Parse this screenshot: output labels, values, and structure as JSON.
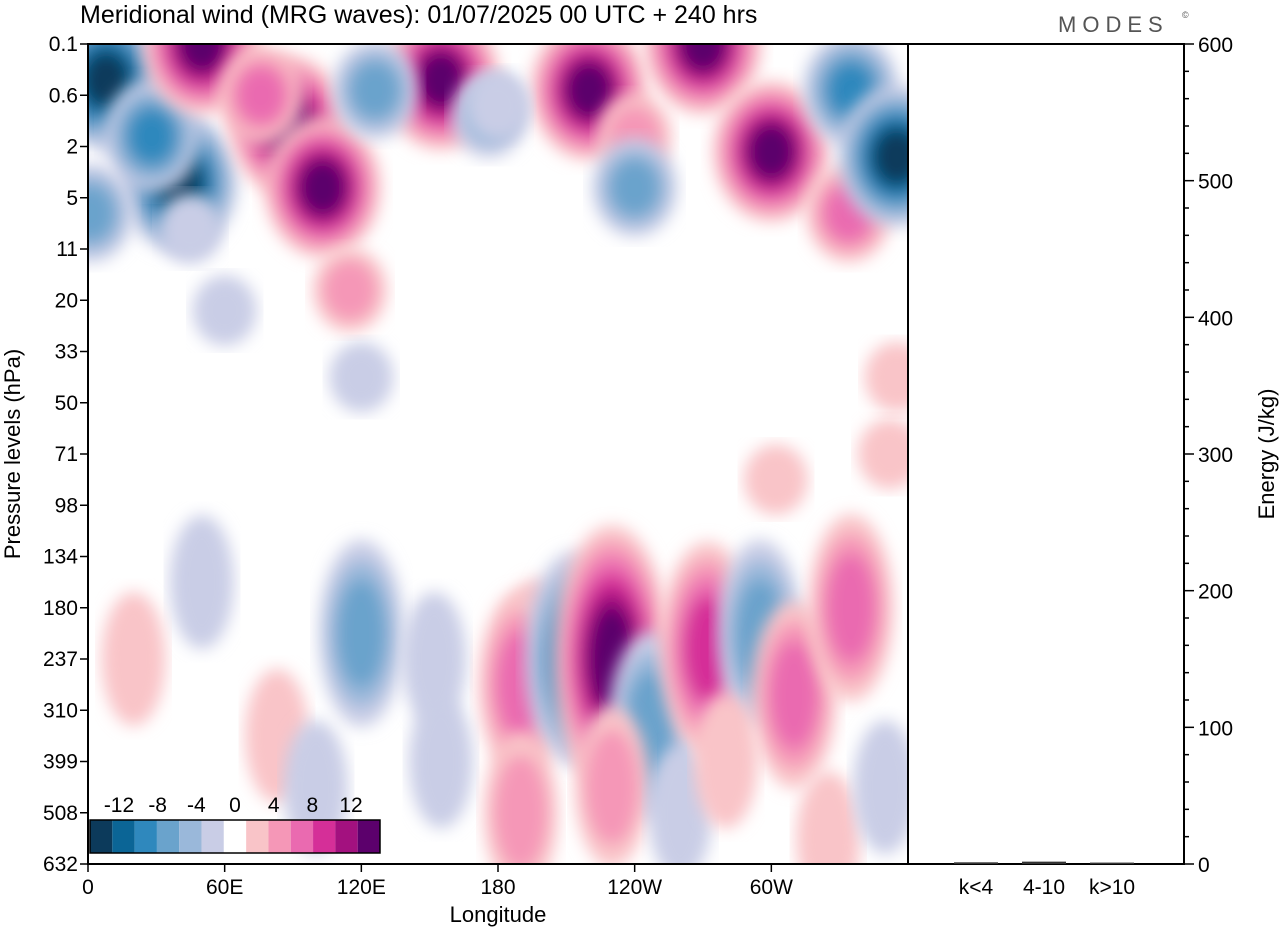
{
  "title": "Meridional wind (MRG waves):  01/07/2025  00 UTC  + 240 hrs",
  "logo": "MODES",
  "logo_mark": "©",
  "chart_data": [
    {
      "type": "heatmap",
      "title": "Meridional wind (MRG waves):  01/07/2025  00 UTC  + 240 hrs",
      "xlabel": "Longitude",
      "ylabel": "Pressure levels (hPa)",
      "x_ticks": [
        "0",
        "60E",
        "120E",
        "180",
        "120W",
        "60W"
      ],
      "x_tick_values": [
        0,
        60,
        120,
        180,
        240,
        300
      ],
      "xlim": [
        0,
        360
      ],
      "y_ticks": [
        "0.1",
        "0.6",
        "2",
        "5",
        "11",
        "20",
        "33",
        "50",
        "71",
        "98",
        "134",
        "180",
        "237",
        "310",
        "399",
        "508",
        "632"
      ],
      "y_scale": "pressure levels (inverted, top = 0.1 hPa)",
      "colorbar": {
        "labels": [
          "-12",
          "-8",
          "-4",
          "0",
          "4",
          "8",
          "12"
        ],
        "levels": [
          -14,
          -12,
          -10,
          -8,
          -6,
          -4,
          -2,
          2,
          4,
          6,
          8,
          10,
          12,
          14
        ],
        "colors": [
          "#0c3a5b",
          "#0b6596",
          "#2f88bd",
          "#6aa3cc",
          "#9ab8da",
          "#c9cde6",
          "#ffffff",
          "#f9c4c8",
          "#f597b7",
          "#ea6ab0",
          "#d52f98",
          "#a3117f",
          "#5c006c"
        ]
      },
      "features": [
        {
          "lon": 8,
          "level_index": 0.7,
          "value": -14
        },
        {
          "lon": 40,
          "level_index": 2.7,
          "value": -14
        },
        {
          "lon": 28,
          "level_index": 1.8,
          "value": -10
        },
        {
          "lon": 1,
          "level_index": 3.3,
          "value": -8
        },
        {
          "lon": 45,
          "level_index": 3.6,
          "value": -4
        },
        {
          "lon": 50,
          "level_index": 0.0,
          "value": 12
        },
        {
          "lon": 88,
          "level_index": 1.6,
          "value": 13
        },
        {
          "lon": 103,
          "level_index": 2.8,
          "value": 12
        },
        {
          "lon": 76,
          "level_index": 1.0,
          "value": 6
        },
        {
          "lon": 115,
          "level_index": 4.8,
          "value": 4
        },
        {
          "lon": 155,
          "level_index": 0.7,
          "value": 13
        },
        {
          "lon": 220,
          "level_index": 0.9,
          "value": 13
        },
        {
          "lon": 270,
          "level_index": 0.0,
          "value": 12
        },
        {
          "lon": 300,
          "level_index": 2.1,
          "value": 14
        },
        {
          "lon": 334,
          "level_index": 3.3,
          "value": 6
        },
        {
          "lon": 240,
          "level_index": 1.8,
          "value": 4
        },
        {
          "lon": 126,
          "level_index": 0.9,
          "value": -8
        },
        {
          "lon": 176,
          "level_index": 1.4,
          "value": -6
        },
        {
          "lon": 240,
          "level_index": 2.8,
          "value": -7
        },
        {
          "lon": 335,
          "level_index": 0.9,
          "value": -10
        },
        {
          "lon": 355,
          "level_index": 2.2,
          "value": -14
        },
        {
          "lon": 180,
          "level_index": 1.2,
          "value": -4
        },
        {
          "lon": 60,
          "level_index": 5.2,
          "value": -3
        },
        {
          "lon": 120,
          "level_index": 6.5,
          "value": -3
        },
        {
          "lon": 120,
          "level_index": 11.5,
          "value": -8
        },
        {
          "lon": 152,
          "level_index": 12.0,
          "value": -4
        },
        {
          "lon": 197,
          "level_index": 12.0,
          "value": 4
        },
        {
          "lon": 190,
          "level_index": 12.5,
          "value": 7
        },
        {
          "lon": 213,
          "level_index": 12.0,
          "value": -10
        },
        {
          "lon": 230,
          "level_index": 12.0,
          "value": 13
        },
        {
          "lon": 247,
          "level_index": 13.3,
          "value": -8
        },
        {
          "lon": 272,
          "level_index": 11.8,
          "value": 9
        },
        {
          "lon": 295,
          "level_index": 11.5,
          "value": -8
        },
        {
          "lon": 310,
          "level_index": 12.7,
          "value": 6
        },
        {
          "lon": 335,
          "level_index": 11.0,
          "value": 6
        },
        {
          "lon": 302,
          "level_index": 8.5,
          "value": 2
        },
        {
          "lon": 352,
          "level_index": 8.0,
          "value": 3
        },
        {
          "lon": 355,
          "level_index": 6.5,
          "value": 3
        },
        {
          "lon": 50,
          "level_index": 10.5,
          "value": -3
        },
        {
          "lon": 20,
          "level_index": 12.0,
          "value": 3
        },
        {
          "lon": 83,
          "level_index": 13.5,
          "value": 3
        },
        {
          "lon": 100,
          "level_index": 14.5,
          "value": -3
        },
        {
          "lon": 155,
          "level_index": 14.0,
          "value": -3
        },
        {
          "lon": 190,
          "level_index": 15.0,
          "value": 5
        },
        {
          "lon": 230,
          "level_index": 14.5,
          "value": 5
        },
        {
          "lon": 260,
          "level_index": 15.0,
          "value": -3
        },
        {
          "lon": 280,
          "level_index": 14.0,
          "value": 3
        },
        {
          "lon": 325,
          "level_index": 15.5,
          "value": 3
        },
        {
          "lon": 350,
          "level_index": 14.5,
          "value": -3
        }
      ]
    },
    {
      "type": "bar",
      "ylabel": "Energy (J/kg)",
      "categories": [
        "k<4",
        "4-10",
        "k>10"
      ],
      "values": [
        0.5,
        1,
        0.3
      ],
      "ylim": [
        0,
        600
      ],
      "y_ticks": [
        0,
        100,
        200,
        300,
        400,
        500,
        600
      ]
    }
  ]
}
